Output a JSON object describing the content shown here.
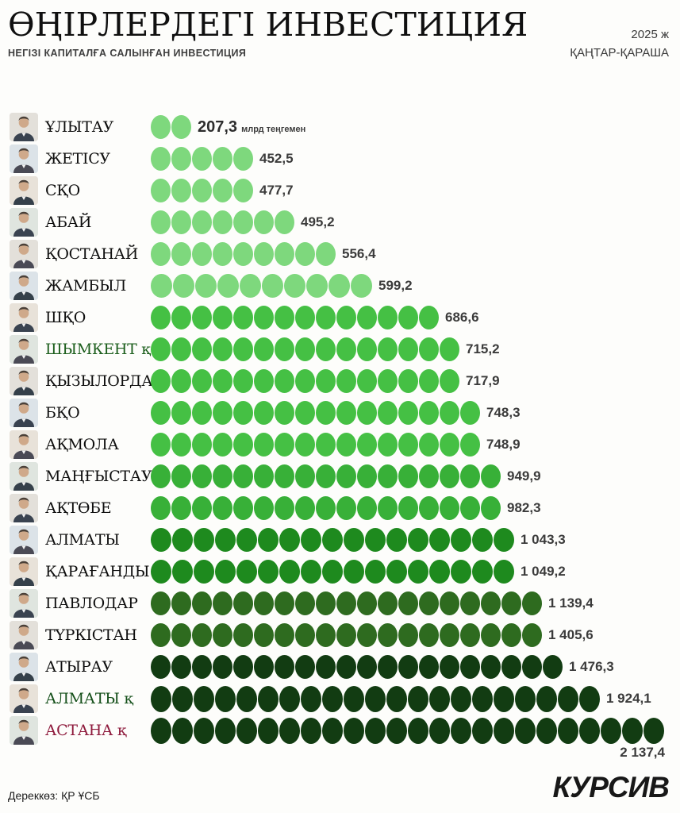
{
  "header": {
    "title": "ӨҢІРЛЕРДЕГІ ИНВЕСТИЦИЯ",
    "subtitle": "НЕГІЗІ КАПИТАЛҒА САЛЫНҒАН ИНВЕСТИЦИЯ",
    "year": "2025 ж",
    "period": "ҚАҢТАР-ҚАРАША"
  },
  "footer": {
    "source": "Дереккөз: ҚР ҰСБ",
    "logo": "КУРСИВ"
  },
  "chart_data": {
    "type": "bar",
    "variant": "pictogram-dot-bars",
    "title": "ӨҢІРЛЕРДЕГІ ИНВЕСТИЦИЯ",
    "subtitle": "НЕГІЗІ КАПИТАЛҒА САЛЫНҒАН ИНВЕСТИЦИЯ",
    "period": "2025 ж, ҚАҢТАР-ҚАРАША",
    "unit": "млрд теңгемен",
    "legend": "none",
    "categories": [
      "ҰЛЫТАУ",
      "ЖЕТІСУ",
      "СҚО",
      "АБАЙ",
      "ҚОСТАНАЙ",
      "ЖАМБЫЛ",
      "ШҚО",
      "ШЫМКЕНТ қ",
      "ҚЫЗЫЛОРДА",
      "БҚО",
      "АҚМОЛА",
      "МАҢҒЫСТАУ",
      "АҚТӨБЕ",
      "АЛМАТЫ",
      "ҚАРАҒАНДЫ",
      "ПАВЛОДАР",
      "ТҮРКІСТАН",
      "АТЫРАУ",
      "АЛМАТЫ қ",
      "АСТАНА қ"
    ],
    "values": [
      207.3,
      452.5,
      477.7,
      495.2,
      556.4,
      599.2,
      686.6,
      715.2,
      717.9,
      748.3,
      748.9,
      949.9,
      982.3,
      1043.3,
      1049.2,
      1139.4,
      1405.6,
      1476.3,
      1924.1,
      2137.4
    ],
    "colors": {
      "band_lightest": "#7ed87d",
      "band_light": "#45c044",
      "band_mid": "#38b038",
      "band_dark": "#1e8a1e",
      "band_olive": "#2e6b1f",
      "band_darkest": "#123c12",
      "value_text": "#3b3b3b",
      "label_default": "#0e0e0e",
      "label_green": "#1c5e1c",
      "label_maroon": "#8e1a3c"
    },
    "rows": [
      {
        "region": "ҰЛЫТАУ",
        "value": "207,3",
        "value_num": 207.3,
        "dots": 2,
        "color": "#7ed87d",
        "suffix": "млрд теңгемен",
        "value_big": true
      },
      {
        "region": "ЖЕТІСУ",
        "value": "452,5",
        "value_num": 452.5,
        "dots": 5,
        "color": "#7ed87d"
      },
      {
        "region": "СҚО",
        "value": "477,7",
        "value_num": 477.7,
        "dots": 5,
        "color": "#7ed87d"
      },
      {
        "region": "АБАЙ",
        "value": "495,2",
        "value_num": 495.2,
        "dots": 7,
        "color": "#7ed87d"
      },
      {
        "region": "ҚОСТАНАЙ",
        "value": "556,4",
        "value_num": 556.4,
        "dots": 9,
        "color": "#7ed87d"
      },
      {
        "region": "ЖАМБЫЛ",
        "value": "599,2",
        "value_num": 599.2,
        "dots": 10,
        "color": "#7ed87d",
        "dot_w": 27
      },
      {
        "region": "ШҚО",
        "value": "686,6",
        "value_num": 686.6,
        "dots": 14,
        "color": "#45c044"
      },
      {
        "region": "ШЫМКЕНТ қ",
        "value": "715,2",
        "value_num": 715.2,
        "dots": 15,
        "color": "#45c044",
        "label_color": "#1c5e1c"
      },
      {
        "region": "ҚЫЗЫЛОРДА",
        "value": "717,9",
        "value_num": 717.9,
        "dots": 15,
        "color": "#45c044"
      },
      {
        "region": "БҚО",
        "value": "748,3",
        "value_num": 748.3,
        "dots": 16,
        "color": "#45c044"
      },
      {
        "region": "АҚМОЛА",
        "value": "748,9",
        "value_num": 748.9,
        "dots": 16,
        "color": "#45c044"
      },
      {
        "region": "МАҢҒЫСТАУ",
        "value": "949,9",
        "value_num": 949.9,
        "dots": 17,
        "color": "#38b038"
      },
      {
        "region": "АҚТӨБЕ",
        "value": "982,3",
        "value_num": 982.3,
        "dots": 17,
        "color": "#38b038"
      },
      {
        "region": "АЛМАТЫ",
        "value": "1 043,3",
        "value_num": 1043.3,
        "dots": 17,
        "color": "#1e8a1e",
        "dot_w": 26
      },
      {
        "region": "ҚАРАҒАНДЫ",
        "value": "1 049,2",
        "value_num": 1049.2,
        "dots": 17,
        "color": "#1e8a1e",
        "dot_w": 26
      },
      {
        "region": "ПАВЛОДАР",
        "value": "1 139,4",
        "value_num": 1139.4,
        "dots": 19,
        "color": "#2e6b1f"
      },
      {
        "region": "ТҮРКІСТАН",
        "value": "1 405,6",
        "value_num": 1405.6,
        "dots": 19,
        "color": "#2e6b1f"
      },
      {
        "region": "АТЫРАУ",
        "value": "1 476,3",
        "value_num": 1476.3,
        "dots": 20,
        "color": "#123c12"
      },
      {
        "region": "АЛМАТЫ қ",
        "value": "1 924,1",
        "value_num": 1924.1,
        "dots": 21,
        "color": "#123c12",
        "label_color": "#15501a",
        "dot_w": 26,
        "dot_h": 33
      },
      {
        "region": "АСТАНА қ",
        "value": "2 137,4",
        "value_num": 2137.4,
        "dots": 24,
        "color": "#123c12",
        "label_color": "#8e1a3c",
        "dot_w": 26,
        "dot_h": 33,
        "value_below": true
      }
    ]
  }
}
